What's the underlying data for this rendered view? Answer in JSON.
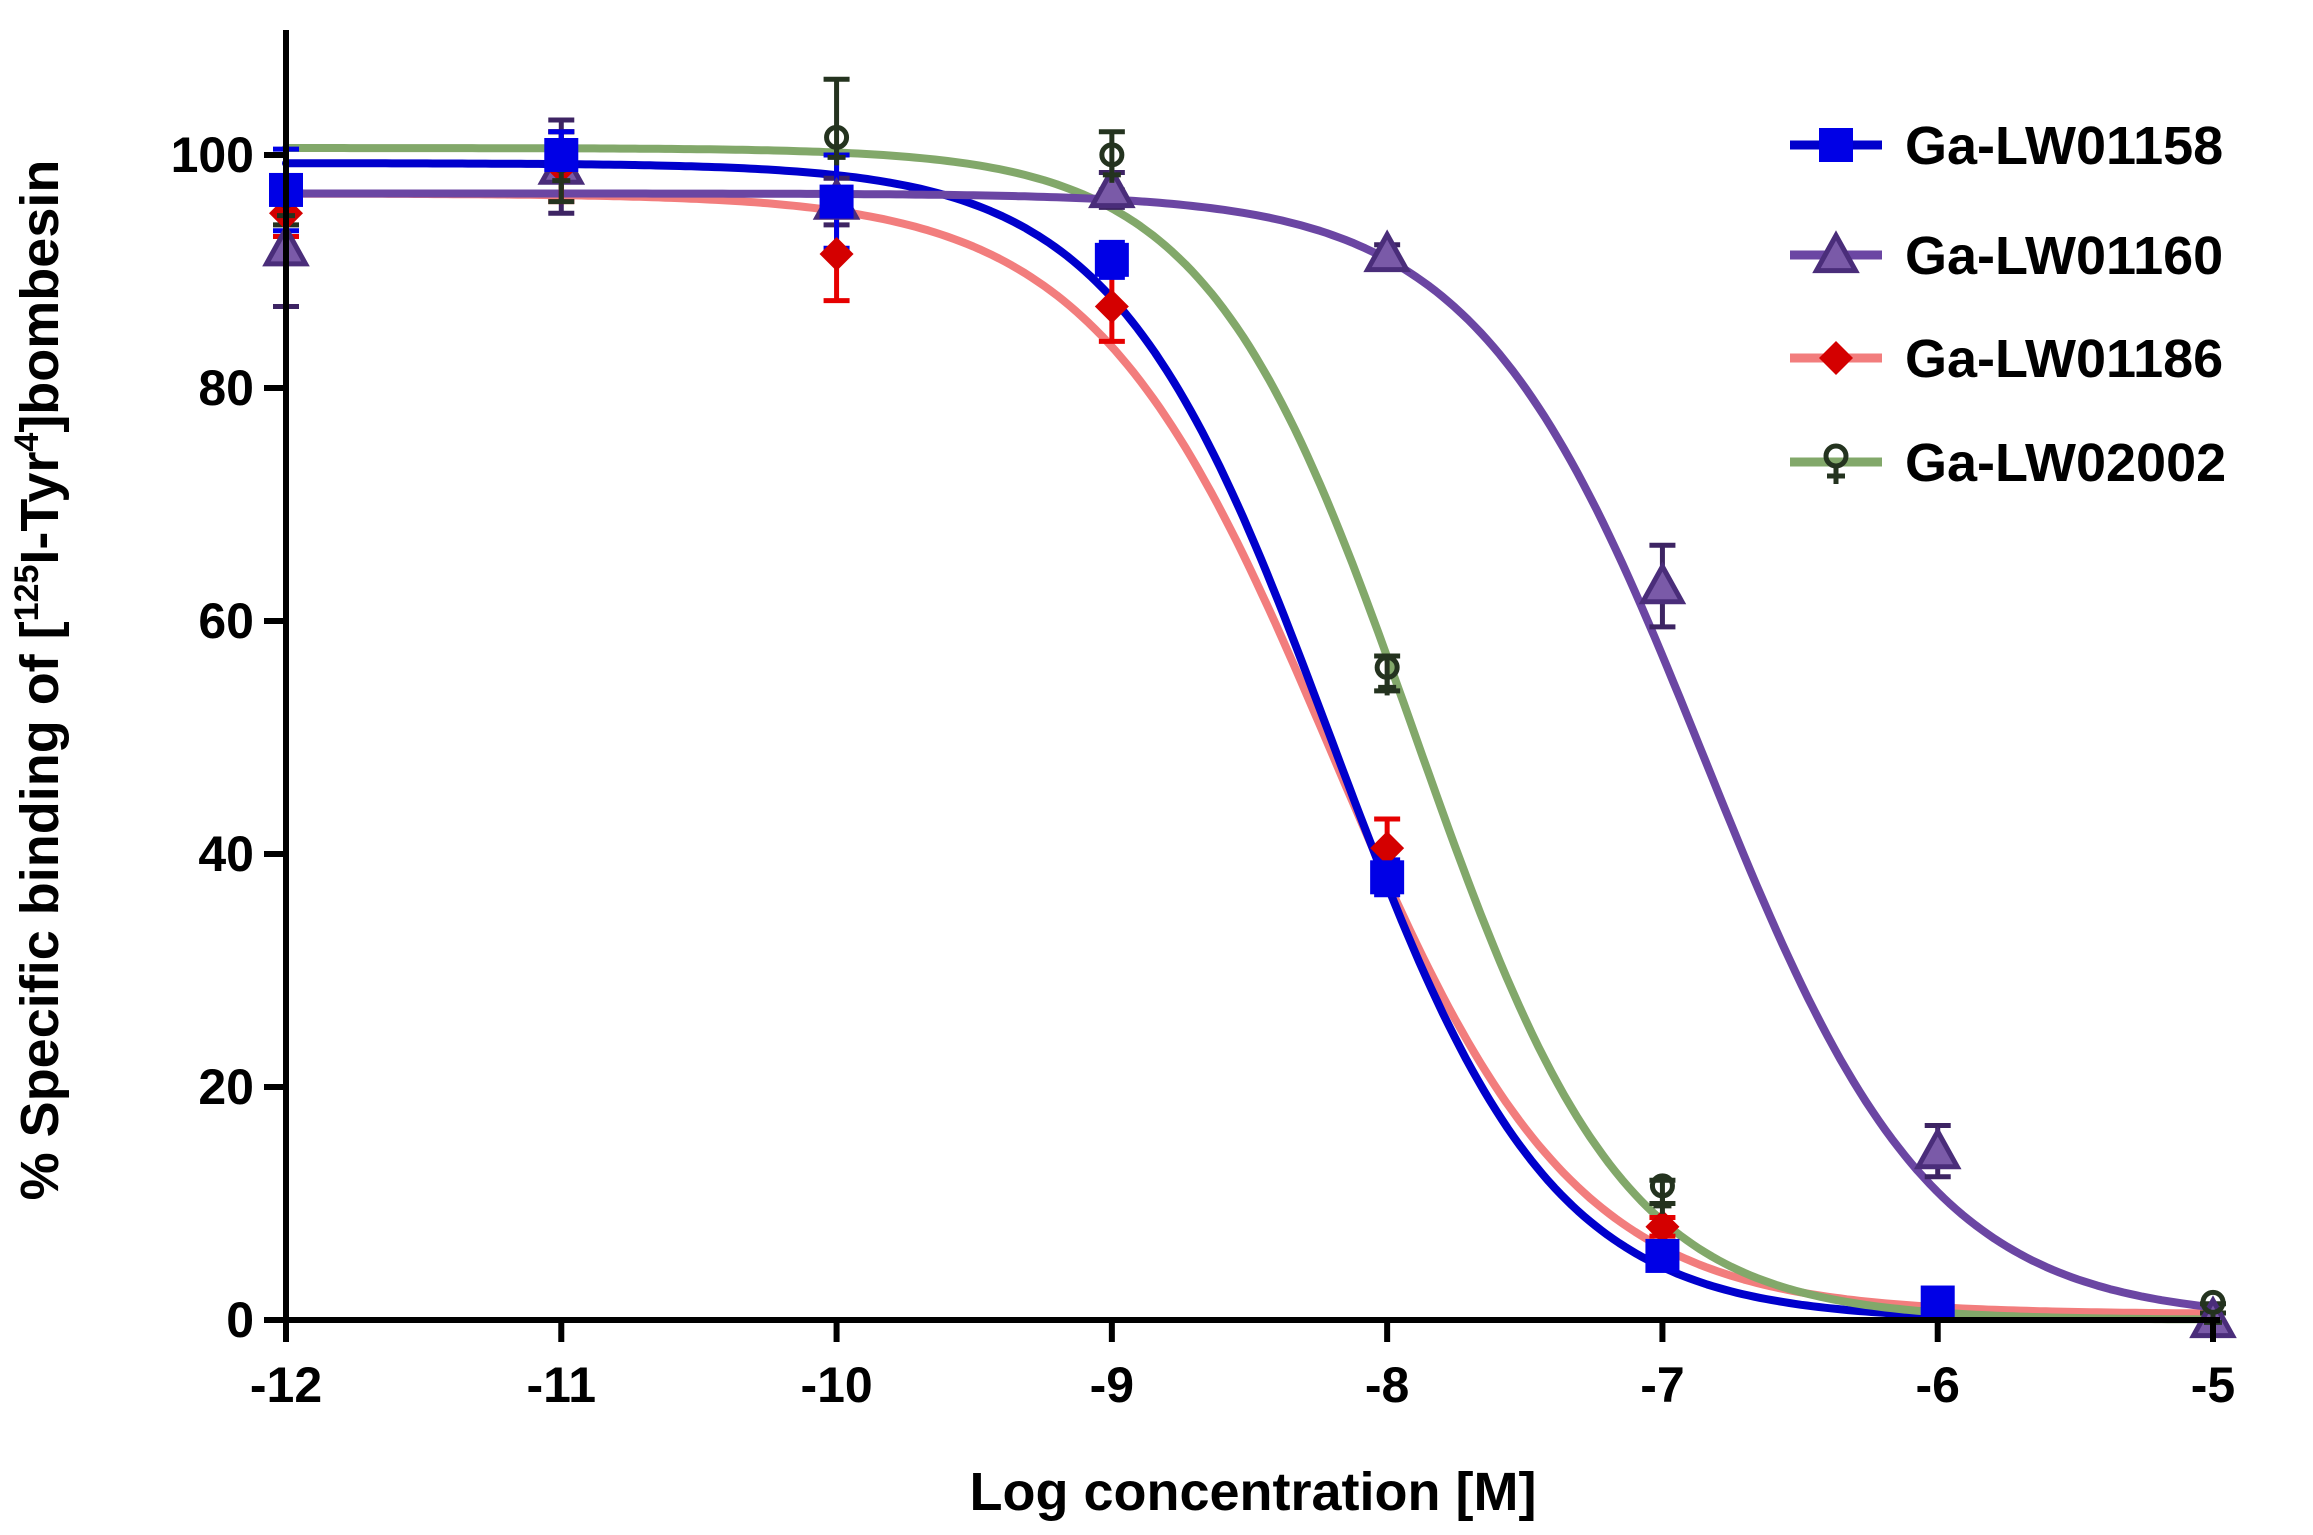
{
  "chart_data": {
    "type": "line",
    "title": "",
    "xlabel": "Log concentration [M]",
    "ylabel": {
      "prefix": "% Specific binding of [",
      "sup1": "125",
      "mid": "I-Tyr",
      "sup2": "4",
      "suffix": "]bombesin"
    },
    "xlim": [
      -12,
      -5
    ],
    "ylim": [
      0,
      110
    ],
    "xticks": [
      -12,
      -11,
      -10,
      -9,
      -8,
      -7,
      -6,
      -5
    ],
    "xtick_labels": [
      "-12",
      "-11",
      "-10",
      "-9",
      "-8",
      "-7",
      "-6",
      "-5"
    ],
    "yticks": [
      0,
      20,
      40,
      60,
      80,
      100
    ],
    "ytick_labels": [
      "0",
      "20",
      "40",
      "60",
      "80",
      "100"
    ],
    "grid": false,
    "legend_position": "top-right",
    "series": [
      {
        "name": "Ga-LW01158",
        "color": "#0000e6",
        "line_color": "#0000cc",
        "err_color": "#0000e6",
        "marker": "square",
        "x": [
          -12,
          -11,
          -10,
          -9,
          -8,
          -7,
          -6
        ],
        "y": [
          97,
          100,
          96,
          91,
          38,
          5.5,
          1.5
        ],
        "err": [
          3.5,
          2,
          4,
          1.5,
          1.5,
          1,
          0.8
        ],
        "fit": {
          "top": 99.3,
          "bottom": 0,
          "logIC50": -8.2,
          "hill": 1.1,
          "xmin": -12,
          "xmax": -5.6
        }
      },
      {
        "name": "Ga-LW01160",
        "color": "#4a2d7a",
        "line_color": "#6b46a3",
        "err_color": "#3d2463",
        "marker": "triangle",
        "x": [
          -12,
          -11,
          -10,
          -9,
          -8,
          -7,
          -6,
          -5
        ],
        "y": [
          92,
          99,
          96,
          97,
          91.5,
          63,
          14.5,
          0
        ],
        "err": [
          5,
          4,
          2,
          1.5,
          0.8,
          3.5,
          2.2,
          0.3
        ],
        "fit": {
          "top": 96.7,
          "bottom": 0,
          "logIC50": -6.85,
          "hill": 1.05,
          "xmin": -12,
          "xmax": -5
        }
      },
      {
        "name": "Ga-LW01186",
        "color": "#d40000",
        "line_color": "#f27d7d",
        "err_color": "#e60000",
        "marker": "diamond",
        "x": [
          -12,
          -11,
          -10,
          -9,
          -8,
          -7
        ],
        "y": [
          95,
          99,
          91.5,
          87,
          40.5,
          8
        ],
        "err": [
          2,
          3,
          4,
          3,
          2.5,
          0.8
        ],
        "fit": {
          "top": 96.7,
          "bottom": 0.5,
          "logIC50": -8.2,
          "hill": 1.0,
          "xmin": -12,
          "xmax": -5
        }
      },
      {
        "name": "Ga-LW02002",
        "color": "#24331f",
        "line_color": "#82a86a",
        "err_color": "#24331f",
        "marker": "venus",
        "x": [
          -12,
          -11,
          -10,
          -9,
          -8,
          -7,
          -5
        ],
        "y": [
          96,
          99,
          101,
          99.5,
          55.5,
          11,
          1
        ],
        "err": [
          2,
          3,
          5.5,
          2.5,
          1.5,
          1,
          0.4
        ],
        "fit": {
          "top": 100.6,
          "bottom": 0,
          "logIC50": -7.9,
          "hill": 1.15,
          "xmin": -12,
          "xmax": -5
        }
      }
    ]
  }
}
